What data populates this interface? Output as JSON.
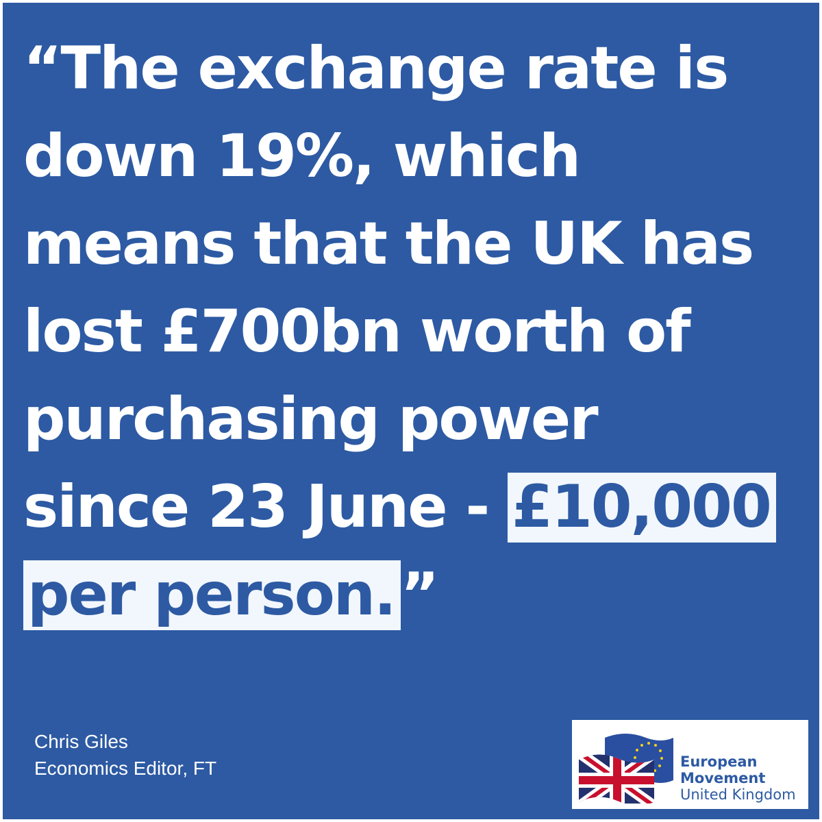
{
  "quote": {
    "lines": [
      "“The exchange rate is",
      "down 19%, which",
      "means that the UK has",
      "lost £700bn worth of",
      "purchasing power",
      "since 23 June - "
    ],
    "highlight_1": "£10,000",
    "highlight_2": "per person.",
    "closing_mark": "”"
  },
  "attribution": {
    "name": "Chris Giles",
    "role": "Economics Editor, FT"
  },
  "logo": {
    "line1": "European",
    "line2": "Movement",
    "line3": "United Kingdom",
    "icon": "eu-uk-flag-icon"
  },
  "colors": {
    "background": "#2d5aa3",
    "text": "#ffffff",
    "highlight_bg": "#f2f7fd",
    "highlight_text": "#2d5aa3",
    "logo_text": "#2d5aa3"
  }
}
